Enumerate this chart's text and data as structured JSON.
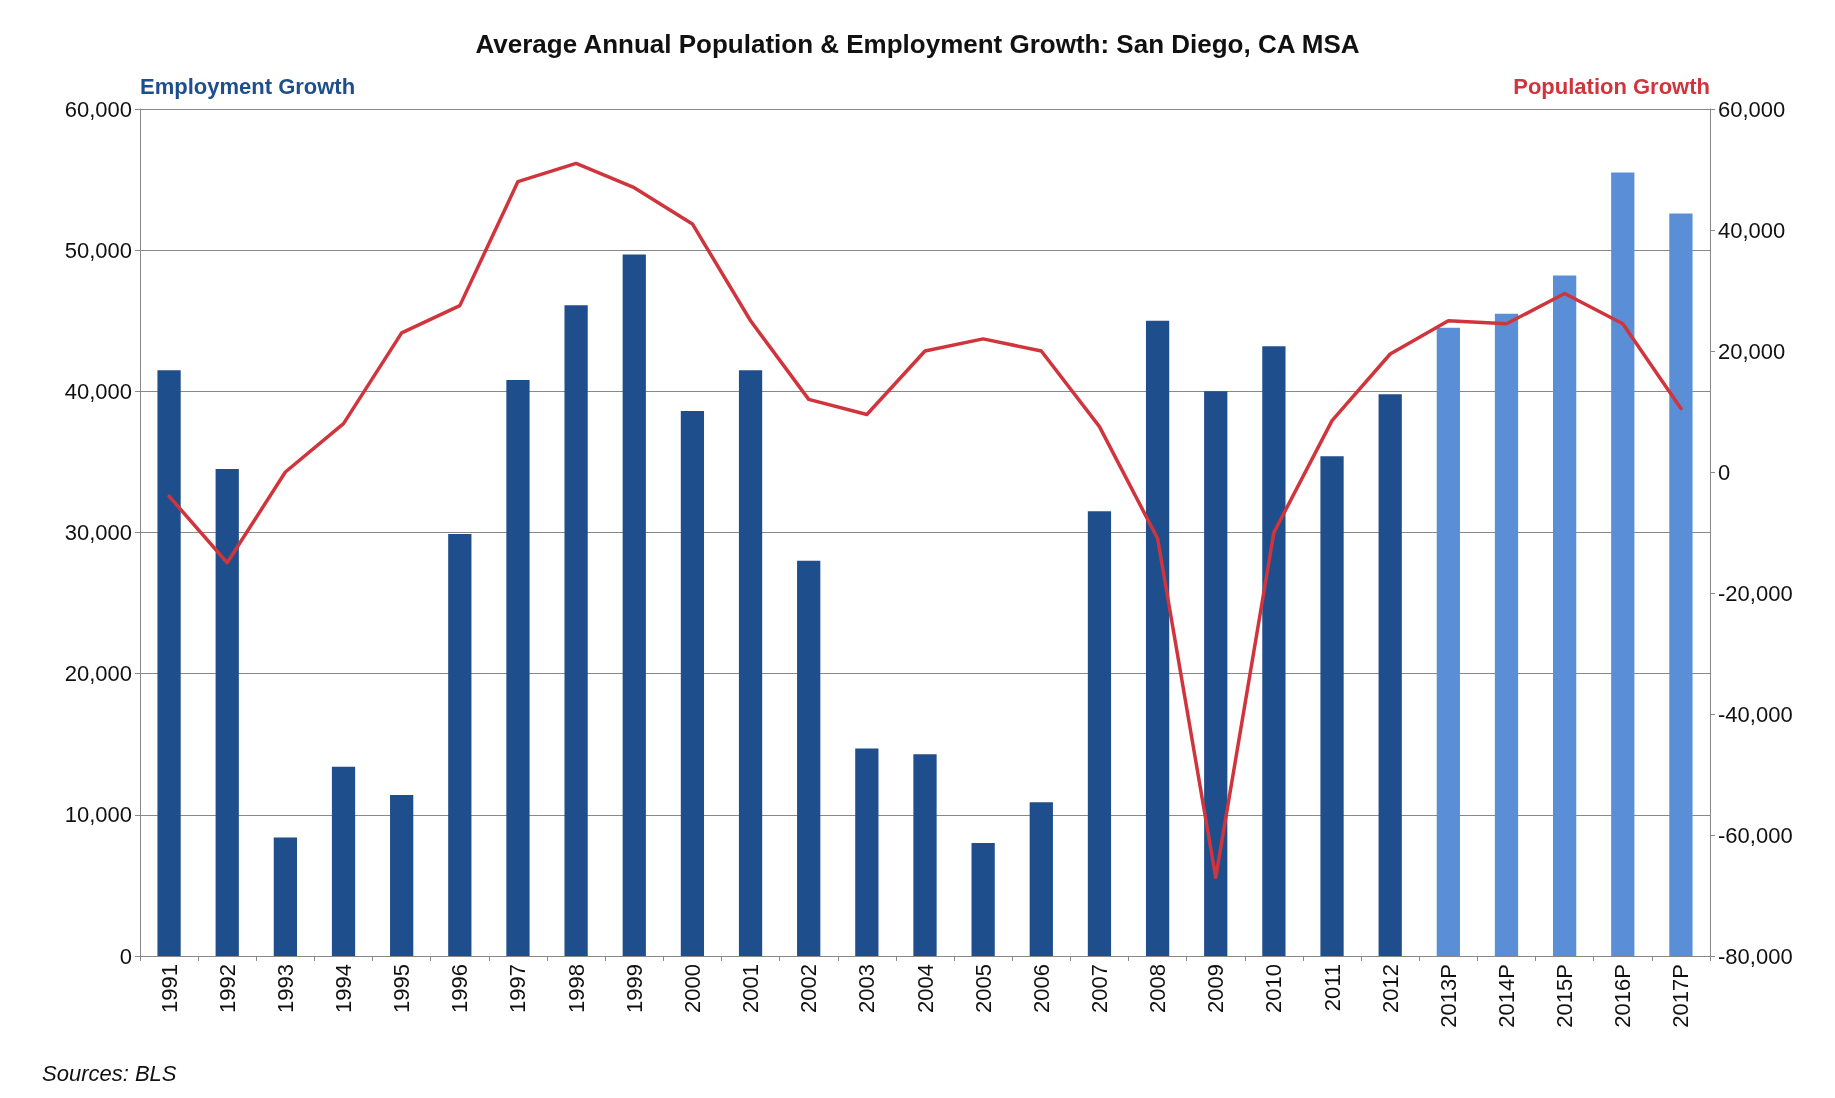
{
  "chart_data": {
    "type": "bar",
    "title": "Average Annual Population & Employment Growth: San Diego, CA MSA",
    "ylabel": "Employment Growth",
    "y2label": "Population Growth",
    "categories": [
      "1991",
      "1992",
      "1993",
      "1994",
      "1995",
      "1996",
      "1997",
      "1998",
      "1999",
      "2000",
      "2001",
      "2002",
      "2003",
      "2004",
      "2005",
      "2006",
      "2007",
      "2008",
      "2009",
      "2010",
      "2011",
      "2012",
      "2013P",
      "2014P",
      "2015P",
      "2016P",
      "2017P"
    ],
    "series": [
      {
        "colors": [
          "#1f4e8c",
          "#1f4e8c",
          "#1f4e8c",
          "#1f4e8c",
          "#1f4e8c",
          "#1f4e8c",
          "#1f4e8c",
          "#1f4e8c",
          "#1f4e8c",
          "#1f4e8c",
          "#1f4e8c",
          "#1f4e8c",
          "#1f4e8c",
          "#1f4e8c",
          "#1f4e8c",
          "#1f4e8c",
          "#1f4e8c",
          "#1f4e8c",
          "#1f4e8c",
          "#1f4e8c",
          "#1f4e8c",
          "#1f4e8c",
          "#5a8fd8",
          "#5a8fd8",
          "#5a8fd8",
          "#5a8fd8",
          "#5a8fd8"
        ],
        "values": [
          41500,
          34500,
          8400,
          13400,
          11400,
          29900,
          40800,
          46100,
          49700,
          38600,
          41500,
          28000,
          14700,
          14300,
          8000,
          10900,
          31500,
          45000,
          40000,
          43200,
          35400,
          39800,
          44500,
          45500,
          48200,
          55500,
          52600
        ]
      },
      {
        "type": "line",
        "axis": "y2",
        "color": "#d0343c",
        "values": [
          -4000,
          -15000,
          0,
          8000,
          23000,
          27500,
          48000,
          51000,
          47000,
          41000,
          25000,
          12000,
          9500,
          20000,
          22000,
          20000,
          7500,
          -11000,
          -67000,
          -10000,
          8500,
          19500,
          25000,
          24500,
          29500,
          24500,
          10500
        ]
      }
    ],
    "ylim": [
      0,
      60000
    ],
    "yticks": [
      0,
      {
        "value": 10000,
        "label": "10,000"
      },
      {
        "value": 20000,
        "label": "20,000"
      },
      {
        "value": 30000,
        "label": "30,000"
      },
      {
        "value": 40000,
        "label": "40,000"
      },
      {
        "value": 50000,
        "label": "50,000"
      },
      {
        "value": 60000,
        "label": "60,000"
      }
    ],
    "y2lim": [
      -80000,
      60000
    ],
    "y2ticks": [
      {
        "value": -80000,
        "label": "-80,000"
      },
      {
        "value": -60000,
        "label": "-60,000"
      },
      {
        "value": -40000,
        "label": "-40,000"
      },
      {
        "value": -20000,
        "label": "-20,000"
      },
      0,
      {
        "value": 20000,
        "label": "20,000"
      },
      {
        "value": 40000,
        "label": "40,000"
      },
      {
        "value": 60000,
        "label": "60,000"
      }
    ],
    "grid": "y",
    "marker": "none",
    "line_style": "solid",
    "annotations": [
      "Sources: BLS"
    ]
  }
}
